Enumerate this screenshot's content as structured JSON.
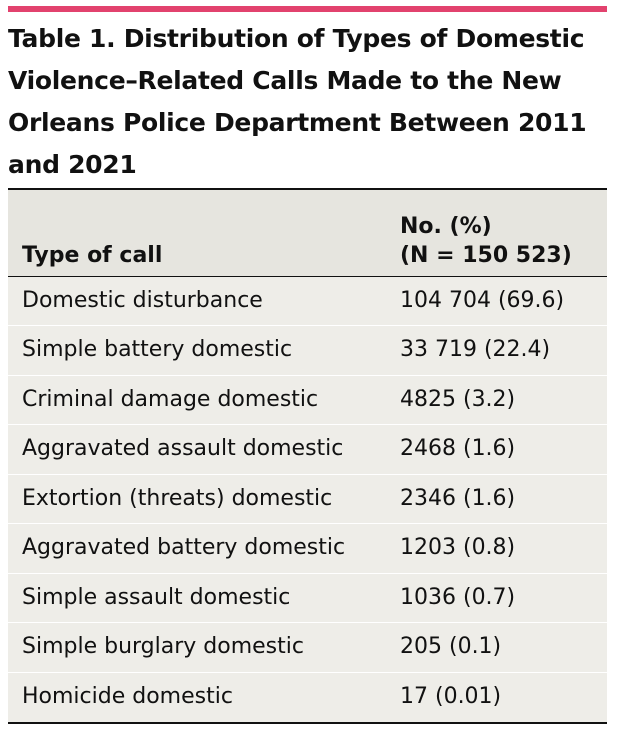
{
  "accent_color": "#e2426e",
  "title": "Table 1. Distribution of Types of Domestic Violence–Related Calls Made to the New Orleans Police Department Between 2011 and 2021",
  "table": {
    "headers": {
      "type": "Type of call",
      "count_line1": "No. (%)",
      "count_line2": "(N = 150 523)"
    },
    "rows": [
      {
        "type": "Domestic disturbance",
        "value": "104 704 (69.6)"
      },
      {
        "type": "Simple battery domestic",
        "value": "33 719 (22.4)"
      },
      {
        "type": "Criminal damage domestic",
        "value": "4825 (3.2)"
      },
      {
        "type": "Aggravated assault domestic",
        "value": "2468 (1.6)"
      },
      {
        "type": "Extortion (threats) domestic",
        "value": "2346 (1.6)"
      },
      {
        "type": "Aggravated battery domestic",
        "value": "1203 (0.8)"
      },
      {
        "type": "Simple assault domestic",
        "value": "1036 (0.7)"
      },
      {
        "type": "Simple burglary domestic",
        "value": "205 (0.1)"
      },
      {
        "type": "Homicide domestic",
        "value": "17 (0.01)"
      }
    ]
  }
}
